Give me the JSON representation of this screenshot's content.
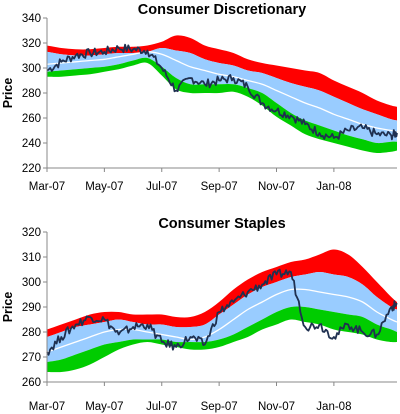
{
  "chart_data": [
    {
      "type": "area",
      "title": "Consumer Discretionary",
      "ylabel": "Price",
      "xlabel": "",
      "ylim": [
        220,
        340
      ],
      "yticks": [
        220,
        240,
        260,
        280,
        300,
        320,
        340
      ],
      "xlim": [
        0,
        12.2
      ],
      "xticks": [
        {
          "x": 0,
          "label": "Mar-07"
        },
        {
          "x": 2,
          "label": "May-07"
        },
        {
          "x": 4,
          "label": "Jul-07"
        },
        {
          "x": 6,
          "label": "Sep-07"
        },
        {
          "x": 8,
          "label": "Nov-07"
        },
        {
          "x": 10,
          "label": "Jan-08"
        }
      ],
      "grid": false,
      "legend": "none",
      "colors": {
        "outer_upper": "#ff0000",
        "inner": "#99ccff",
        "outer_lower": "#00cc00",
        "mean": "#ffffff",
        "price": "#1f3050"
      },
      "x": [
        0,
        0.5,
        1,
        1.5,
        2,
        2.5,
        3,
        3.5,
        4,
        4.5,
        5,
        5.5,
        6,
        6.5,
        7,
        7.5,
        8,
        8.5,
        9,
        9.5,
        10,
        10.5,
        11,
        11.5,
        12,
        12.2
      ],
      "series": [
        {
          "role": "band_upper_outer",
          "values": [
            318,
            316,
            315,
            315,
            316,
            317,
            317,
            318,
            321,
            326,
            324,
            318,
            315,
            312,
            307,
            304,
            302,
            300,
            298,
            296,
            290,
            285,
            280,
            274,
            270,
            269
          ]
        },
        {
          "role": "band_upper_inner",
          "values": [
            313,
            311,
            310,
            310,
            311,
            312,
            312,
            313,
            316,
            314,
            312,
            307,
            304,
            302,
            298,
            296,
            292,
            288,
            285,
            282,
            277,
            272,
            267,
            263,
            259,
            258
          ]
        },
        {
          "role": "mean",
          "values": [
            303,
            304,
            305,
            306,
            307,
            309,
            311,
            313,
            311,
            306,
            301,
            298,
            295,
            293,
            290,
            287,
            282,
            277,
            272,
            268,
            263,
            259,
            255,
            252,
            250,
            249
          ]
        },
        {
          "role": "band_lower_inner",
          "values": [
            297,
            298,
            299,
            300,
            301,
            303,
            306,
            308,
            301,
            292,
            287,
            287,
            287,
            287,
            284,
            280,
            272,
            264,
            258,
            254,
            250,
            246,
            243,
            240,
            241,
            241
          ]
        },
        {
          "role": "band_lower_outer",
          "values": [
            293,
            293,
            294,
            295,
            297,
            299,
            302,
            304,
            294,
            283,
            280,
            280,
            280,
            281,
            277,
            270,
            261,
            254,
            247,
            243,
            240,
            237,
            234,
            232,
            233,
            234
          ]
        },
        {
          "role": "price",
          "values": [
            298,
            305,
            310,
            312,
            313,
            316,
            315,
            314,
            300,
            282,
            292,
            287,
            290,
            292,
            285,
            272,
            266,
            262,
            255,
            248,
            244,
            250,
            252,
            247,
            246,
            248
          ]
        }
      ]
    },
    {
      "type": "area",
      "title": "Consumer Staples",
      "ylabel": "Price",
      "xlabel": "",
      "ylim": [
        260,
        320
      ],
      "yticks": [
        260,
        270,
        280,
        290,
        300,
        310,
        320
      ],
      "xlim": [
        0,
        12.2
      ],
      "xticks": [
        {
          "x": 0,
          "label": "Mar-07"
        },
        {
          "x": 2,
          "label": "May-07"
        },
        {
          "x": 4,
          "label": "Jul-07"
        },
        {
          "x": 6,
          "label": "Sep-07"
        },
        {
          "x": 8,
          "label": "Nov-07"
        },
        {
          "x": 10,
          "label": "Jan-08"
        }
      ],
      "grid": false,
      "legend": "none",
      "colors": {
        "outer_upper": "#ff0000",
        "inner": "#99ccff",
        "outer_lower": "#00cc00",
        "mean": "#ffffff",
        "price": "#1f3050"
      },
      "x": [
        0,
        0.5,
        1,
        1.5,
        2,
        2.5,
        3,
        3.5,
        4,
        4.5,
        5,
        5.5,
        6,
        6.5,
        7,
        7.5,
        8,
        8.5,
        9,
        9.5,
        10,
        10.5,
        11,
        11.5,
        12,
        12.2
      ],
      "series": [
        {
          "role": "band_upper_outer",
          "values": [
            281,
            283,
            285,
            287,
            288,
            288,
            287,
            287,
            287,
            286,
            286,
            288,
            292,
            297,
            301,
            304,
            306,
            308,
            309,
            311,
            313,
            311,
            306,
            300,
            294,
            292
          ]
        },
        {
          "role": "band_upper_inner",
          "values": [
            278,
            280,
            282,
            283,
            284,
            285,
            284,
            283,
            283,
            282,
            282,
            283,
            287,
            291,
            295,
            298,
            300,
            302,
            303,
            304,
            303,
            302,
            299,
            294,
            290,
            289
          ]
        },
        {
          "role": "mean",
          "values": [
            272,
            274,
            276,
            278,
            280,
            281,
            281,
            280,
            279,
            278,
            277,
            278,
            281,
            285,
            289,
            292,
            295,
            297,
            297,
            296,
            295,
            294,
            292,
            288,
            285,
            284
          ]
        },
        {
          "role": "band_lower_inner",
          "values": [
            268,
            269,
            271,
            273,
            275,
            276,
            277,
            277,
            277,
            276,
            276,
            276,
            277,
            279,
            282,
            285,
            288,
            290,
            290,
            289,
            288,
            287,
            286,
            283,
            281,
            280
          ]
        },
        {
          "role": "band_lower_outer",
          "values": [
            264,
            264,
            265,
            267,
            270,
            273,
            275,
            276,
            275,
            274,
            273,
            273,
            274,
            276,
            278,
            281,
            283,
            285,
            284,
            283,
            281,
            280,
            279,
            277,
            276,
            276
          ]
        },
        {
          "role": "price",
          "values": [
            272,
            278,
            283,
            286,
            285,
            279,
            282,
            283,
            276,
            274,
            278,
            275,
            288,
            292,
            296,
            299,
            303,
            304,
            282,
            283,
            278,
            283,
            280,
            279,
            290,
            291
          ]
        }
      ]
    }
  ]
}
